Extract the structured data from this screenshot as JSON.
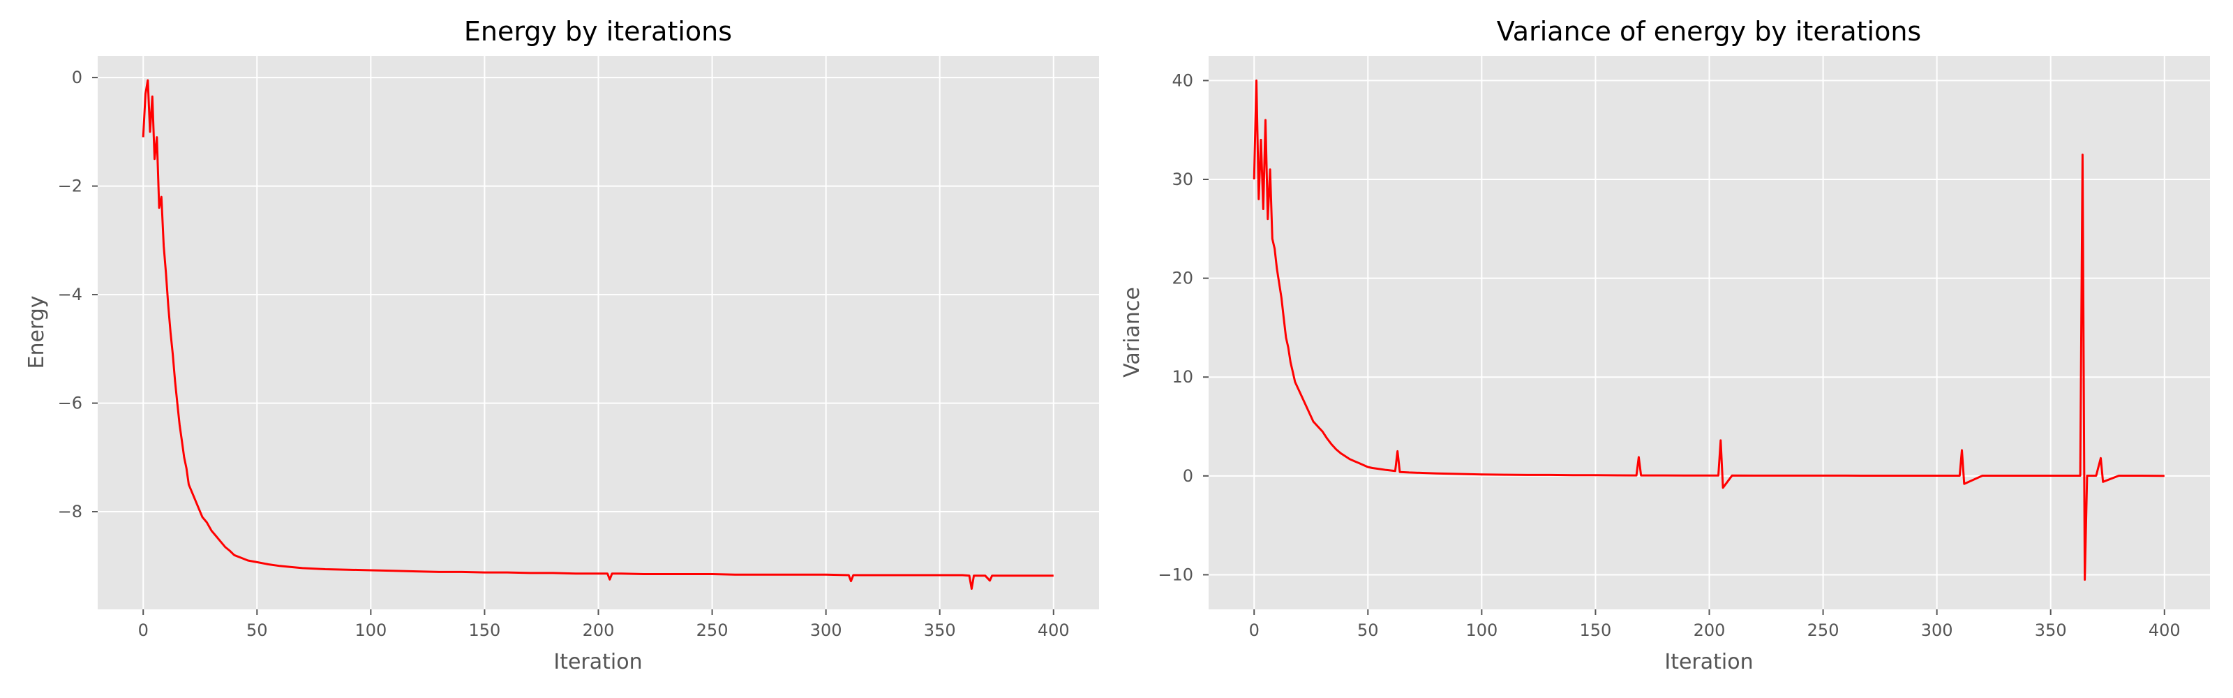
{
  "chart_data": [
    {
      "type": "line",
      "title": "Energy by iterations",
      "xlabel": "Iteration",
      "ylabel": "Energy",
      "xlim": [
        -20,
        420
      ],
      "ylim": [
        -9.8,
        0.4
      ],
      "xticks": [
        0,
        50,
        100,
        150,
        200,
        250,
        300,
        350,
        400
      ],
      "yticks": [
        0,
        -2,
        -4,
        -6,
        -8
      ],
      "ytick_labels": [
        "0",
        "−2",
        "−4",
        "−6",
        "−8"
      ],
      "grid": true,
      "background": "#e5e5e5",
      "line_color": "#ff0000",
      "series": [
        {
          "x": [
            0,
            1,
            2,
            3,
            4,
            5,
            6,
            7,
            8,
            9,
            10,
            11,
            12,
            13,
            14,
            15,
            16,
            17,
            18,
            19,
            20,
            22,
            24,
            26,
            28,
            30,
            32,
            34,
            36,
            38,
            40,
            43,
            46,
            50,
            55,
            60,
            65,
            70,
            80,
            90,
            100,
            110,
            120,
            130,
            140,
            150,
            160,
            170,
            180,
            190,
            200,
            204,
            205,
            206,
            210,
            220,
            230,
            240,
            250,
            260,
            270,
            280,
            290,
            300,
            310,
            311,
            312,
            320,
            330,
            340,
            350,
            360,
            363,
            364,
            365,
            366,
            370,
            372,
            373,
            380,
            390,
            400
          ],
          "values": [
            -1.1,
            -0.3,
            -0.05,
            -1.0,
            -0.35,
            -1.5,
            -1.1,
            -2.4,
            -2.2,
            -3.1,
            -3.6,
            -4.2,
            -4.7,
            -5.1,
            -5.6,
            -6.0,
            -6.4,
            -6.7,
            -7.0,
            -7.2,
            -7.5,
            -7.7,
            -7.9,
            -8.1,
            -8.2,
            -8.35,
            -8.45,
            -8.55,
            -8.65,
            -8.72,
            -8.8,
            -8.85,
            -8.9,
            -8.93,
            -8.97,
            -9.0,
            -9.02,
            -9.04,
            -9.06,
            -9.07,
            -9.08,
            -9.09,
            -9.1,
            -9.11,
            -9.11,
            -9.12,
            -9.12,
            -9.13,
            -9.13,
            -9.14,
            -9.14,
            -9.14,
            -9.25,
            -9.14,
            -9.14,
            -9.15,
            -9.15,
            -9.15,
            -9.15,
            -9.16,
            -9.16,
            -9.16,
            -9.16,
            -9.16,
            -9.17,
            -9.28,
            -9.17,
            -9.17,
            -9.17,
            -9.17,
            -9.17,
            -9.17,
            -9.18,
            -9.42,
            -9.18,
            -9.18,
            -9.18,
            -9.27,
            -9.18,
            -9.18,
            -9.18,
            -9.18
          ]
        }
      ]
    },
    {
      "type": "line",
      "title": "Variance of energy by iterations",
      "xlabel": "Iteration",
      "ylabel": "Variance",
      "xlim": [
        -20,
        420
      ],
      "ylim": [
        -13.5,
        42.5
      ],
      "xticks": [
        0,
        50,
        100,
        150,
        200,
        250,
        300,
        350,
        400
      ],
      "yticks": [
        40,
        30,
        20,
        10,
        0,
        -10
      ],
      "ytick_labels": [
        "40",
        "30",
        "20",
        "10",
        "0",
        "−10"
      ],
      "grid": true,
      "background": "#e5e5e5",
      "line_color": "#ff0000",
      "series": [
        {
          "x": [
            0,
            1,
            2,
            3,
            4,
            5,
            6,
            7,
            8,
            9,
            10,
            11,
            12,
            13,
            14,
            15,
            16,
            17,
            18,
            19,
            20,
            22,
            24,
            26,
            28,
            30,
            32,
            34,
            36,
            38,
            40,
            42,
            44,
            46,
            48,
            50,
            52,
            55,
            58,
            62,
            63,
            64,
            68,
            75,
            80,
            90,
            100,
            110,
            120,
            130,
            140,
            150,
            160,
            168,
            169,
            170,
            180,
            190,
            200,
            204,
            205,
            206,
            210,
            220,
            230,
            240,
            250,
            260,
            270,
            280,
            290,
            300,
            310,
            311,
            312,
            320,
            330,
            340,
            350,
            360,
            363,
            364,
            365,
            366,
            370,
            372,
            373,
            380,
            390,
            400
          ],
          "values": [
            30,
            40,
            28,
            34,
            27,
            36,
            26,
            31,
            24,
            23,
            21,
            19.5,
            18,
            16,
            14,
            13,
            11.5,
            10.5,
            9.5,
            9,
            8.5,
            7.5,
            6.5,
            5.5,
            5,
            4.5,
            3.8,
            3.2,
            2.7,
            2.3,
            2,
            1.7,
            1.5,
            1.3,
            1.1,
            0.9,
            0.8,
            0.7,
            0.6,
            0.5,
            2.5,
            0.4,
            0.35,
            0.3,
            0.25,
            0.2,
            0.15,
            0.12,
            0.1,
            0.1,
            0.08,
            0.07,
            0.06,
            0.05,
            1.9,
            0.05,
            0.05,
            0.04,
            0.04,
            0.04,
            3.6,
            -1.2,
            0.04,
            0.03,
            0.03,
            0.03,
            0.03,
            0.03,
            0.02,
            0.02,
            0.02,
            0.02,
            0.02,
            2.6,
            -0.8,
            0.02,
            0.02,
            0.02,
            0.02,
            0.02,
            0.02,
            32.5,
            -10.5,
            0.02,
            0.02,
            1.8,
            -0.6,
            0.02,
            0.02,
            0.0
          ]
        }
      ]
    }
  ]
}
